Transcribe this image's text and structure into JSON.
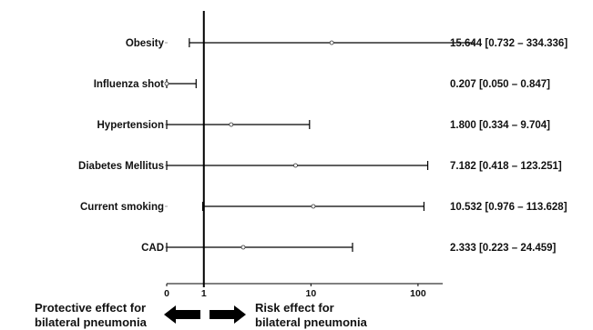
{
  "chart_data": {
    "type": "forest",
    "x_scale": "log",
    "xlim": [
      0.45,
      170
    ],
    "reference_line": 1,
    "x_ticks": [
      {
        "value": 0.45,
        "label": "0"
      },
      {
        "value": 1,
        "label": "1"
      },
      {
        "value": 10,
        "label": "10"
      },
      {
        "value": 100,
        "label": "100"
      }
    ],
    "rows": [
      {
        "label": "Obesity",
        "estimate": 15.644,
        "lower": 0.732,
        "upper": 334.336,
        "text": "15.644 [0.732 – 334.336]"
      },
      {
        "label": "Influenza shot",
        "estimate": 0.207,
        "lower": 0.05,
        "upper": 0.847,
        "text": "0.207 [0.050 – 0.847]"
      },
      {
        "label": "Hypertension",
        "estimate": 1.8,
        "lower": 0.334,
        "upper": 9.704,
        "text": "1.800 [0.334 – 9.704]"
      },
      {
        "label": "Diabetes Mellitus",
        "estimate": 7.182,
        "lower": 0.418,
        "upper": 123.251,
        "text": "7.182 [0.418 – 123.251]"
      },
      {
        "label": "Current smoking",
        "estimate": 10.532,
        "lower": 0.976,
        "upper": 113.628,
        "text": "10.532 [0.976 – 113.628]"
      },
      {
        "label": "CAD",
        "estimate": 2.333,
        "lower": 0.223,
        "upper": 24.459,
        "text": "2.333 [0.223 – 24.459]"
      }
    ],
    "annotations": {
      "left_lines": [
        "Protective effect for",
        "bilateral pneumonia"
      ],
      "right_lines": [
        "Risk effect for",
        "bilateral pneumonia"
      ]
    },
    "colors": {
      "line": "#000000",
      "arrow": "#000000"
    }
  }
}
